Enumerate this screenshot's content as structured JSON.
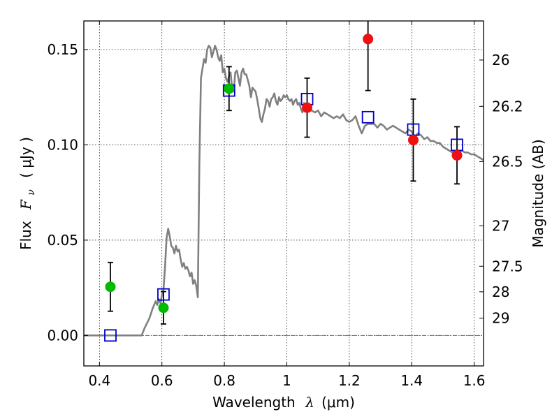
{
  "chart_data": {
    "type": "scatter",
    "xlabel": {
      "prefix": "Wavelength",
      "symbol": "λ",
      "unit": "(μm)"
    },
    "ylabel": {
      "prefix": "Flux",
      "symbol": "F",
      "subscript": "ν",
      "unit": "( μJy )"
    },
    "y2label": "Magnitude (AB)",
    "xlim": [
      0.35,
      1.63
    ],
    "ylim": [
      -0.016,
      0.165
    ],
    "x_ticks": [
      0.4,
      0.6,
      0.8,
      1.0,
      1.2,
      1.4,
      1.6
    ],
    "x_tick_labels": [
      "0.4",
      "0.6",
      "0.8",
      "1",
      "1.2",
      "1.4",
      "1.6"
    ],
    "y_ticks": [
      0.0,
      0.05,
      0.1,
      0.15
    ],
    "y_tick_labels": [
      "0.00",
      "0.05",
      "0.10",
      "0.15"
    ],
    "y2_ticks": [
      {
        "label": "26",
        "flux": 0.1445
      },
      {
        "label": "26.2",
        "flux": 0.1202
      },
      {
        "label": "26.5",
        "flux": 0.0912
      },
      {
        "label": "27",
        "flux": 0.0575
      },
      {
        "label": "27.5",
        "flux": 0.0363
      },
      {
        "label": "28",
        "flux": 0.0229
      },
      {
        "label": "29",
        "flux": 0.0091
      }
    ],
    "grid": true,
    "colors": {
      "model": "#808080",
      "green_points": "#00bb00",
      "red_points": "#ee1111",
      "squares": "#0000cc",
      "errorbar": "#000000",
      "zero_line": "#555555"
    },
    "series": [
      {
        "marker": "line",
        "color": "#808080",
        "x": [
          0.35,
          0.535,
          0.545,
          0.56,
          0.57,
          0.58,
          0.585,
          0.59,
          0.595,
          0.6,
          0.605,
          0.61,
          0.615,
          0.62,
          0.625,
          0.63,
          0.635,
          0.64,
          0.645,
          0.65,
          0.655,
          0.66,
          0.665,
          0.67,
          0.675,
          0.68,
          0.685,
          0.69,
          0.695,
          0.7,
          0.705,
          0.71,
          0.715,
          0.72,
          0.725,
          0.73,
          0.735,
          0.74,
          0.745,
          0.75,
          0.755,
          0.76,
          0.765,
          0.77,
          0.775,
          0.78,
          0.785,
          0.79,
          0.795,
          0.8,
          0.805,
          0.81,
          0.815,
          0.82,
          0.825,
          0.83,
          0.835,
          0.84,
          0.845,
          0.85,
          0.855,
          0.86,
          0.865,
          0.87,
          0.875,
          0.88,
          0.885,
          0.89,
          0.895,
          0.9,
          0.905,
          0.91,
          0.915,
          0.92,
          0.925,
          0.93,
          0.935,
          0.94,
          0.945,
          0.95,
          0.955,
          0.96,
          0.965,
          0.97,
          0.975,
          0.98,
          0.985,
          0.99,
          0.995,
          1.0,
          1.005,
          1.01,
          1.015,
          1.02,
          1.025,
          1.03,
          1.035,
          1.04,
          1.045,
          1.05,
          1.055,
          1.06,
          1.065,
          1.07,
          1.075,
          1.08,
          1.09,
          1.1,
          1.11,
          1.12,
          1.13,
          1.14,
          1.15,
          1.16,
          1.17,
          1.18,
          1.19,
          1.2,
          1.21,
          1.22,
          1.23,
          1.24,
          1.25,
          1.26,
          1.27,
          1.28,
          1.29,
          1.3,
          1.31,
          1.32,
          1.33,
          1.34,
          1.35,
          1.36,
          1.37,
          1.38,
          1.39,
          1.4,
          1.41,
          1.42,
          1.43,
          1.44,
          1.45,
          1.46,
          1.47,
          1.48,
          1.49,
          1.5,
          1.51,
          1.52,
          1.53,
          1.54,
          1.55,
          1.56,
          1.57,
          1.58,
          1.59,
          1.6,
          1.61,
          1.62,
          1.63
        ],
        "y": [
          0.0,
          0.0,
          0.004,
          0.009,
          0.014,
          0.018,
          0.016,
          0.019,
          0.017,
          0.021,
          0.024,
          0.036,
          0.051,
          0.056,
          0.052,
          0.047,
          0.046,
          0.043,
          0.047,
          0.044,
          0.045,
          0.04,
          0.036,
          0.038,
          0.035,
          0.036,
          0.034,
          0.031,
          0.033,
          0.027,
          0.029,
          0.026,
          0.02,
          0.09,
          0.135,
          0.14,
          0.145,
          0.143,
          0.15,
          0.152,
          0.151,
          0.146,
          0.149,
          0.152,
          0.15,
          0.146,
          0.144,
          0.147,
          0.138,
          0.14,
          0.135,
          0.133,
          0.136,
          0.138,
          0.129,
          0.128,
          0.138,
          0.139,
          0.135,
          0.131,
          0.138,
          0.14,
          0.137,
          0.137,
          0.134,
          0.131,
          0.125,
          0.13,
          0.129,
          0.128,
          0.124,
          0.119,
          0.114,
          0.112,
          0.116,
          0.119,
          0.124,
          0.123,
          0.12,
          0.124,
          0.125,
          0.127,
          0.123,
          0.121,
          0.125,
          0.123,
          0.124,
          0.126,
          0.125,
          0.126,
          0.124,
          0.123,
          0.124,
          0.121,
          0.123,
          0.124,
          0.121,
          0.122,
          0.119,
          0.117,
          0.122,
          0.121,
          0.118,
          0.119,
          0.118,
          0.118,
          0.117,
          0.118,
          0.115,
          0.117,
          0.116,
          0.115,
          0.114,
          0.115,
          0.114,
          0.116,
          0.113,
          0.112,
          0.113,
          0.115,
          0.11,
          0.106,
          0.11,
          0.111,
          0.111,
          0.111,
          0.109,
          0.111,
          0.11,
          0.108,
          0.109,
          0.11,
          0.109,
          0.108,
          0.107,
          0.106,
          0.108,
          0.107,
          0.104,
          0.106,
          0.105,
          0.103,
          0.104,
          0.102,
          0.102,
          0.101,
          0.101,
          0.099,
          0.098,
          0.097,
          0.096,
          0.097,
          0.096,
          0.097,
          0.096,
          0.096,
          0.095,
          0.095,
          0.094,
          0.093,
          0.092
        ]
      },
      {
        "marker": "green-circle",
        "color": "#00bb00",
        "x": [
          0.435,
          0.605,
          0.815
        ],
        "y": [
          0.0255,
          0.0145,
          0.1295
        ],
        "yerr": [
          0.0128,
          0.0085,
          0.0115
        ]
      },
      {
        "marker": "red-circle",
        "color": "#ee1111",
        "x": [
          1.065,
          1.26,
          1.405,
          1.545
        ],
        "y": [
          0.1195,
          0.1555,
          0.1025,
          0.0945
        ],
        "yerr": [
          0.0155,
          0.027,
          0.0215,
          0.015
        ]
      },
      {
        "marker": "blue-square",
        "color": "#0000cc",
        "x": [
          0.435,
          0.605,
          0.815,
          1.065,
          1.26,
          1.405,
          1.545
        ],
        "y": [
          0.0,
          0.0215,
          0.1285,
          0.124,
          0.1145,
          0.108,
          0.1
        ]
      }
    ]
  }
}
